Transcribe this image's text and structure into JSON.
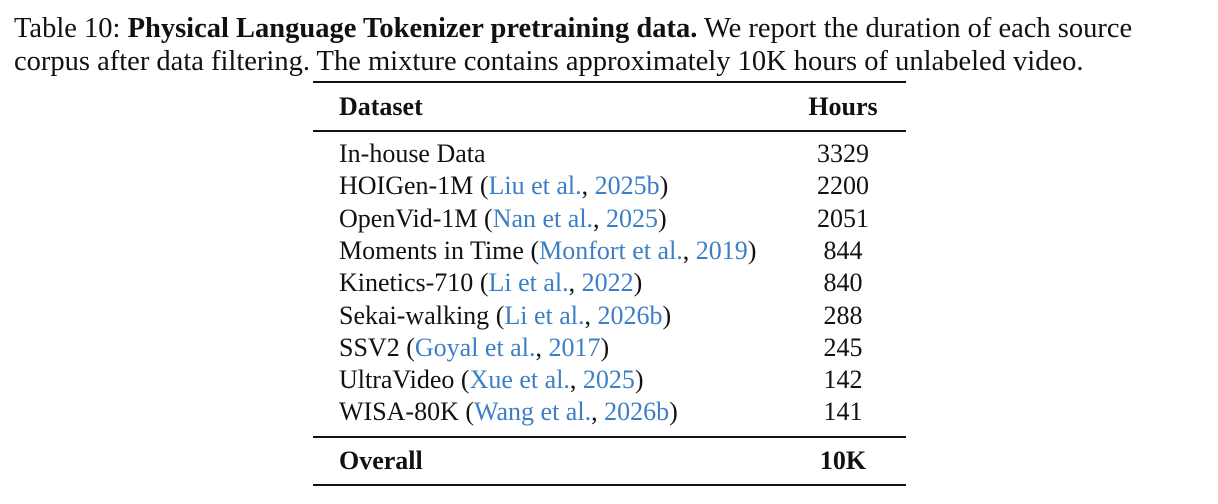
{
  "caption": {
    "label": "Table 10:",
    "title": "Physical Language Tokenizer pretraining data.",
    "text1": "We report the duration of each source",
    "text2": "corpus after data filtering. The mixture contains approximately 10K hours of unlabeled video."
  },
  "table": {
    "headers": {
      "dataset": "Dataset",
      "hours": "Hours"
    },
    "rows": [
      {
        "name": "In-house Data",
        "cite_authors": "",
        "cite_year": "",
        "hours": "3329"
      },
      {
        "name": "HOIGen-1M",
        "cite_authors": "Liu et al.",
        "cite_year": "2025b",
        "hours": "2200"
      },
      {
        "name": "OpenVid-1M",
        "cite_authors": "Nan et al.",
        "cite_year": "2025",
        "hours": "2051"
      },
      {
        "name": "Moments in Time",
        "cite_authors": "Monfort et al.",
        "cite_year": "2019",
        "hours": "844"
      },
      {
        "name": "Kinetics-710",
        "cite_authors": "Li et al.",
        "cite_year": "2022",
        "hours": "840"
      },
      {
        "name": "Sekai-walking",
        "cite_authors": "Li et al.",
        "cite_year": "2026b",
        "hours": "288"
      },
      {
        "name": "SSV2",
        "cite_authors": "Goyal et al.",
        "cite_year": "2017",
        "hours": "245"
      },
      {
        "name": "UltraVideo",
        "cite_authors": "Xue et al.",
        "cite_year": "2025",
        "hours": "142"
      },
      {
        "name": "WISA-80K",
        "cite_authors": "Wang et al.",
        "cite_year": "2026b",
        "hours": "141"
      }
    ],
    "footer": {
      "name": "Overall",
      "hours": "10K"
    }
  },
  "colors": {
    "citation": "#3d7fc6",
    "text": "#111111"
  }
}
